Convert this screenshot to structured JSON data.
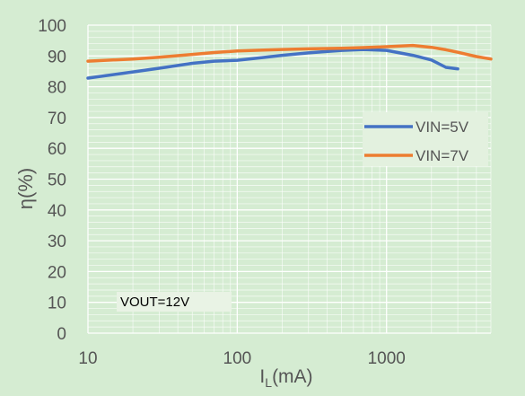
{
  "chart_data": {
    "type": "line",
    "x_scale": "log",
    "xlim": [
      10,
      5000
    ],
    "ylim": [
      0,
      100
    ],
    "x_ticks": [
      "10",
      "100",
      "1000"
    ],
    "y_ticks": [
      "0",
      "10",
      "20",
      "30",
      "40",
      "50",
      "60",
      "70",
      "80",
      "90",
      "100"
    ],
    "xlabel_main": "I",
    "xlabel_sub": "L",
    "xlabel_unit": "(mA)",
    "ylabel": "η(%)",
    "grid": true,
    "legend_position": "right",
    "annotation": "VOUT=12V",
    "series": [
      {
        "name": "VIN=5V",
        "color": "#4472c4",
        "x": [
          10,
          20,
          30,
          50,
          70,
          100,
          150,
          200,
          300,
          500,
          700,
          1000,
          1500,
          2000,
          2500,
          3000
        ],
        "y": [
          82.8,
          84.8,
          86.0,
          87.6,
          88.3,
          88.6,
          89.5,
          90.2,
          91.0,
          91.8,
          92.1,
          91.8,
          90.2,
          88.7,
          86.3,
          85.8
        ]
      },
      {
        "name": "VIN=7V",
        "color": "#ed7d31",
        "x": [
          10,
          20,
          30,
          50,
          70,
          100,
          150,
          200,
          300,
          500,
          700,
          1000,
          1500,
          2000,
          2500,
          3000,
          4000,
          5000
        ],
        "y": [
          88.3,
          89.0,
          89.6,
          90.5,
          91.1,
          91.6,
          91.9,
          92.1,
          92.3,
          92.5,
          92.7,
          93.0,
          93.4,
          92.8,
          92.0,
          91.2,
          89.8,
          89.0
        ]
      }
    ]
  }
}
